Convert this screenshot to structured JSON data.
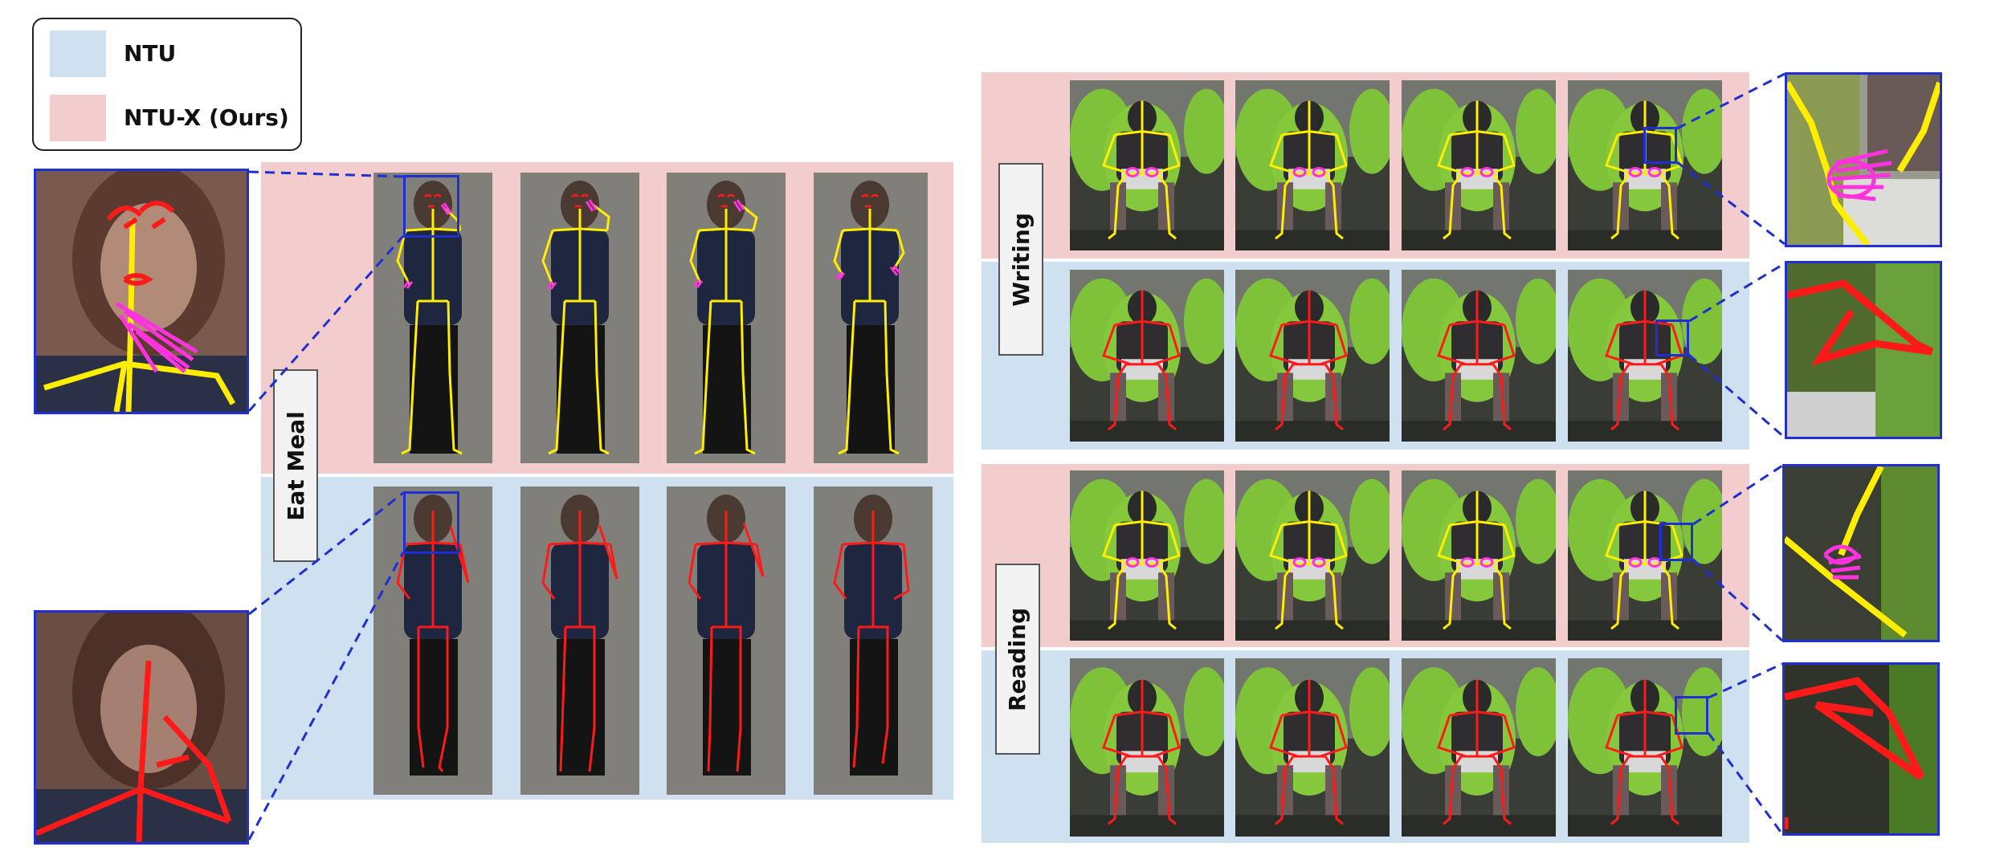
{
  "legend": {
    "items": [
      {
        "label": "NTU",
        "color": "#cfe0f1"
      },
      {
        "label": "NTU-X (Ours)",
        "color": "#f3cccd"
      }
    ]
  },
  "actions": [
    {
      "label": "Eat Meal"
    },
    {
      "label": "Writing"
    },
    {
      "label": "Reading"
    }
  ],
  "colors": {
    "ntu_band": "#cfe0f1",
    "ntux_band": "#f3cccd",
    "zoom_border": "#1f2fd0",
    "skeleton_ntux": "#ffee00",
    "skeleton_ntu": "#ff1a1a",
    "hand_ntux": "#ff33dd",
    "face_ntux": "#ff1a1a"
  }
}
